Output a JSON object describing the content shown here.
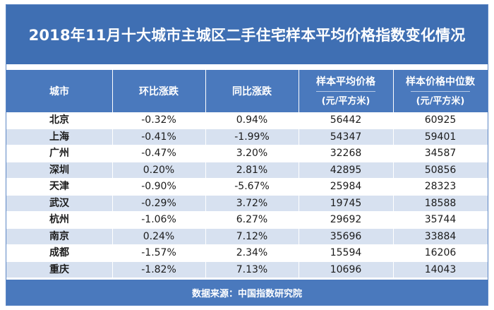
{
  "title": "2018年11月十大城市主城区二手住宅样本平均价格指数变化情况",
  "headers": {
    "city": "城市",
    "mom": "环比涨跌",
    "yoy": "同比涨跌",
    "avg_price": "样本平均价格",
    "avg_unit": "(元/平方米)",
    "median_price": "样本价格中位数",
    "median_unit": "(元/平方米)"
  },
  "rows": [
    {
      "city": "北京",
      "mom": "-0.32%",
      "yoy": "0.94%",
      "avg": "56442",
      "median": "60925"
    },
    {
      "city": "上海",
      "mom": "-0.41%",
      "yoy": "-1.99%",
      "avg": "54347",
      "median": "59401"
    },
    {
      "city": "广州",
      "mom": "-0.47%",
      "yoy": "3.20%",
      "avg": "32268",
      "median": "34587"
    },
    {
      "city": "深圳",
      "mom": "0.20%",
      "yoy": "2.81%",
      "avg": "42895",
      "median": "50856"
    },
    {
      "city": "天津",
      "mom": "-0.90%",
      "yoy": "-5.67%",
      "avg": "25984",
      "median": "28323"
    },
    {
      "city": "武汉",
      "mom": "-0.29%",
      "yoy": "3.72%",
      "avg": "19745",
      "median": "18588"
    },
    {
      "city": "杭州",
      "mom": "-1.06%",
      "yoy": "6.27%",
      "avg": "29692",
      "median": "35744"
    },
    {
      "city": "南京",
      "mom": "0.24%",
      "yoy": "7.12%",
      "avg": "35696",
      "median": "33884"
    },
    {
      "city": "成都",
      "mom": "-1.57%",
      "yoy": "2.34%",
      "avg": "15594",
      "median": "16206"
    },
    {
      "city": "重庆",
      "mom": "-1.82%",
      "yoy": "7.13%",
      "avg": "10696",
      "median": "14043"
    }
  ],
  "footer": "数据来源：中国指数研究院",
  "colors": {
    "title_bg": "#3f6fb3",
    "header_bg": "#4a79bd",
    "alt_row_bg": "#d7e1f0"
  }
}
